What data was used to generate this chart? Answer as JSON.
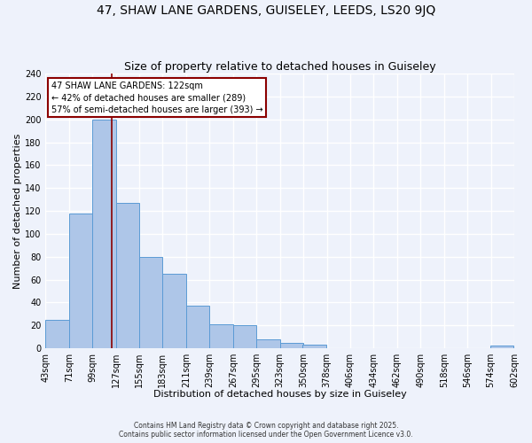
{
  "title_line1": "47, SHAW LANE GARDENS, GUISELEY, LEEDS, LS20 9JQ",
  "title_line2": "Size of property relative to detached houses in Guiseley",
  "xlabel": "Distribution of detached houses by size in Guiseley",
  "ylabel": "Number of detached properties",
  "bar_left_edges": [
    43,
    71,
    99,
    127,
    155,
    183,
    211,
    239,
    267,
    295,
    323,
    350,
    378,
    406,
    434,
    462,
    490,
    518,
    546,
    574
  ],
  "bar_heights": [
    25,
    118,
    200,
    127,
    80,
    65,
    37,
    21,
    20,
    8,
    5,
    3,
    0,
    0,
    0,
    0,
    0,
    0,
    0,
    2
  ],
  "bin_width": 28,
  "bar_color": "#aec6e8",
  "bar_edge_color": "#5b9bd5",
  "property_size": 122,
  "vline_color": "#8b0000",
  "annotation_text": "47 SHAW LANE GARDENS: 122sqm\n← 42% of detached houses are smaller (289)\n57% of semi-detached houses are larger (393) →",
  "annotation_box_color": "white",
  "annotation_box_edge": "#8b0000",
  "ylim": [
    0,
    240
  ],
  "yticks": [
    0,
    20,
    40,
    60,
    80,
    100,
    120,
    140,
    160,
    180,
    200,
    220,
    240
  ],
  "tick_labels": [
    "43sqm",
    "71sqm",
    "99sqm",
    "127sqm",
    "155sqm",
    "183sqm",
    "211sqm",
    "239sqm",
    "267sqm",
    "295sqm",
    "323sqm",
    "350sqm",
    "378sqm",
    "406sqm",
    "434sqm",
    "462sqm",
    "490sqm",
    "518sqm",
    "546sqm",
    "574sqm",
    "602sqm"
  ],
  "footer_line1": "Contains HM Land Registry data © Crown copyright and database right 2025.",
  "footer_line2": "Contains public sector information licensed under the Open Government Licence v3.0.",
  "background_color": "#eef2fb",
  "grid_color": "#ffffff",
  "title_fontsize": 10,
  "subtitle_fontsize": 9,
  "axis_label_fontsize": 8,
  "tick_fontsize": 7
}
